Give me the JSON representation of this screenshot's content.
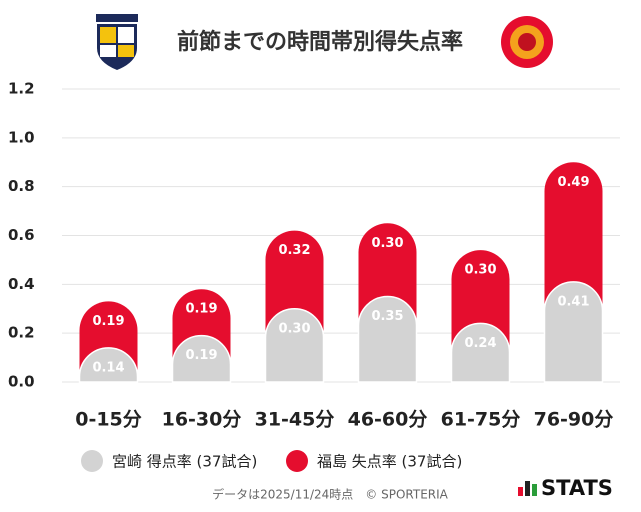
{
  "chart_data": {
    "type": "bar",
    "title": "前節までの時間帯別得失点率",
    "categories": [
      "0-15分",
      "16-30分",
      "31-45分",
      "46-60分",
      "61-75分",
      "76-90分"
    ],
    "series": [
      {
        "name": "宮崎 得点率 (37試合)",
        "color": "#d3d3d3",
        "values": [
          0.14,
          0.19,
          0.3,
          0.35,
          0.24,
          0.41
        ],
        "value_labels": [
          "0.14",
          "0.19",
          "0.30",
          "0.35",
          "0.24",
          "0.41"
        ]
      },
      {
        "name": "福島 失点率 (37試合)",
        "color": "#e50d2e",
        "values": [
          0.19,
          0.19,
          0.32,
          0.3,
          0.3,
          0.49
        ],
        "value_labels": [
          "0.19",
          "0.19",
          "0.32",
          "0.30",
          "0.30",
          "0.49"
        ]
      }
    ],
    "stacked": true,
    "ylim": [
      0,
      1.2
    ],
    "yticks": [
      {
        "value": 0,
        "label": "0.0"
      },
      0.2,
      0.4,
      0.6,
      0.8,
      {
        "value": 1,
        "label": "1.0"
      },
      1.2
    ],
    "grid": true,
    "footer": "データは2025/11/24時点　© SPORTERIA",
    "brand": "STATS"
  }
}
